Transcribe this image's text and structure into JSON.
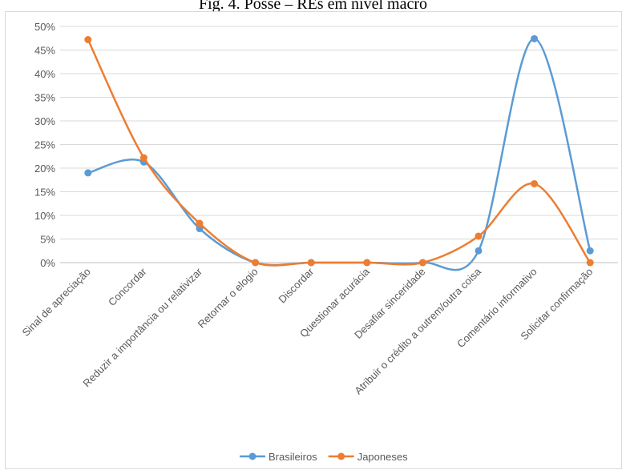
{
  "title": "Fig. 4. Posse – REs em nível macro",
  "chart_data": {
    "type": "line",
    "title": "Fig. 4. Posse – REs em nível macro",
    "xlabel": "",
    "ylabel": "",
    "ylim": [
      0,
      0.5
    ],
    "y_ticks": [
      "0%",
      "5%",
      "10%",
      "15%",
      "20%",
      "25%",
      "30%",
      "35%",
      "40%",
      "45%",
      "50%"
    ],
    "grid": true,
    "legend_position": "bottom",
    "categories": [
      "Sinal de apreciação",
      "Concordar",
      "Reduzir a importância ou relativizar",
      "Retornar o elogio",
      "Discordar",
      "Questionar acurácia",
      "Desafiar sinceridade",
      "Atribuir o crédito a outrem/outra coisa",
      "Comentário informativo",
      "Solicitar confirmação"
    ],
    "series": [
      {
        "name": "Brasileiros",
        "color": "#5b9bd5",
        "values": [
          0.19,
          0.213,
          0.072,
          0,
          0,
          0,
          0,
          0.025,
          0.474,
          0.025
        ]
      },
      {
        "name": "Japoneses",
        "color": "#ed7d31",
        "values": [
          0.472,
          0.222,
          0.083,
          0,
          0,
          0,
          0,
          0.056,
          0.167,
          0
        ]
      }
    ]
  }
}
